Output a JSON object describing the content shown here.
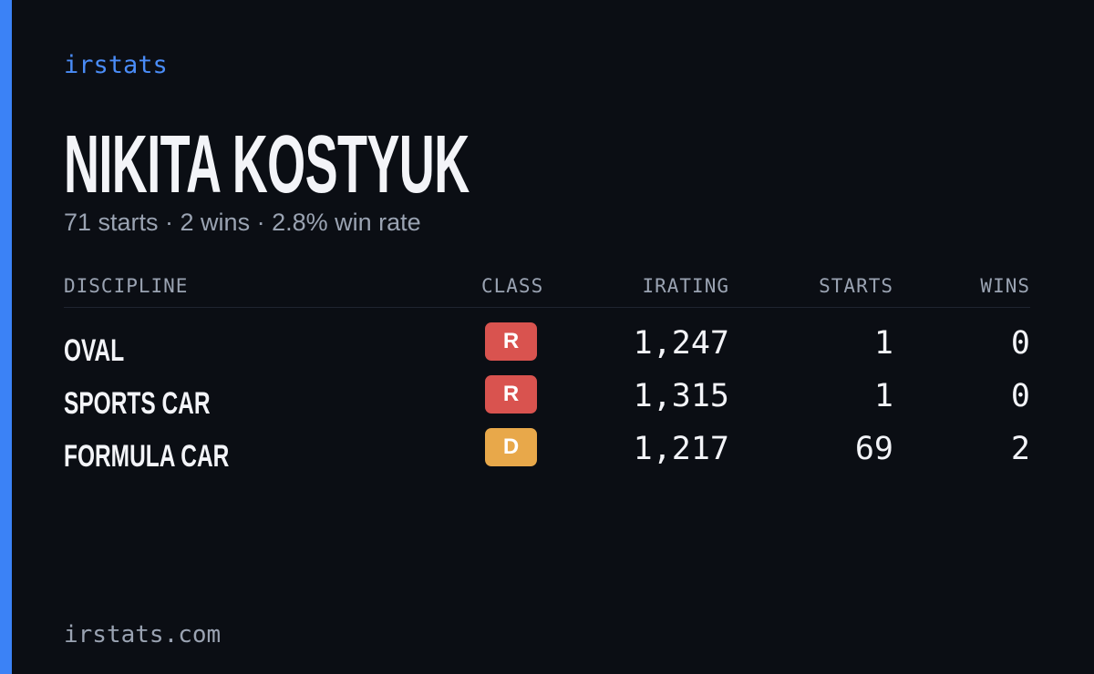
{
  "brand": "irstats",
  "title": "NIKITA KOSTYUK",
  "subtitle": "71 starts · 2 wins · 2.8% win rate",
  "table": {
    "headers": [
      "DISCIPLINE",
      "CLASS",
      "IRATING",
      "STARTS",
      "WINS"
    ],
    "rows": [
      {
        "discipline": "OVAL",
        "class": "R",
        "class_color": "#d9534f",
        "irating": "1,247",
        "starts": "1",
        "wins": "0"
      },
      {
        "discipline": "SPORTS CAR",
        "class": "R",
        "class_color": "#d9534f",
        "irating": "1,315",
        "starts": "1",
        "wins": "0"
      },
      {
        "discipline": "FORMULA CAR",
        "class": "D",
        "class_color": "#e8a84a",
        "irating": "1,217",
        "starts": "69",
        "wins": "2"
      }
    ]
  },
  "footer": "irstats.com"
}
